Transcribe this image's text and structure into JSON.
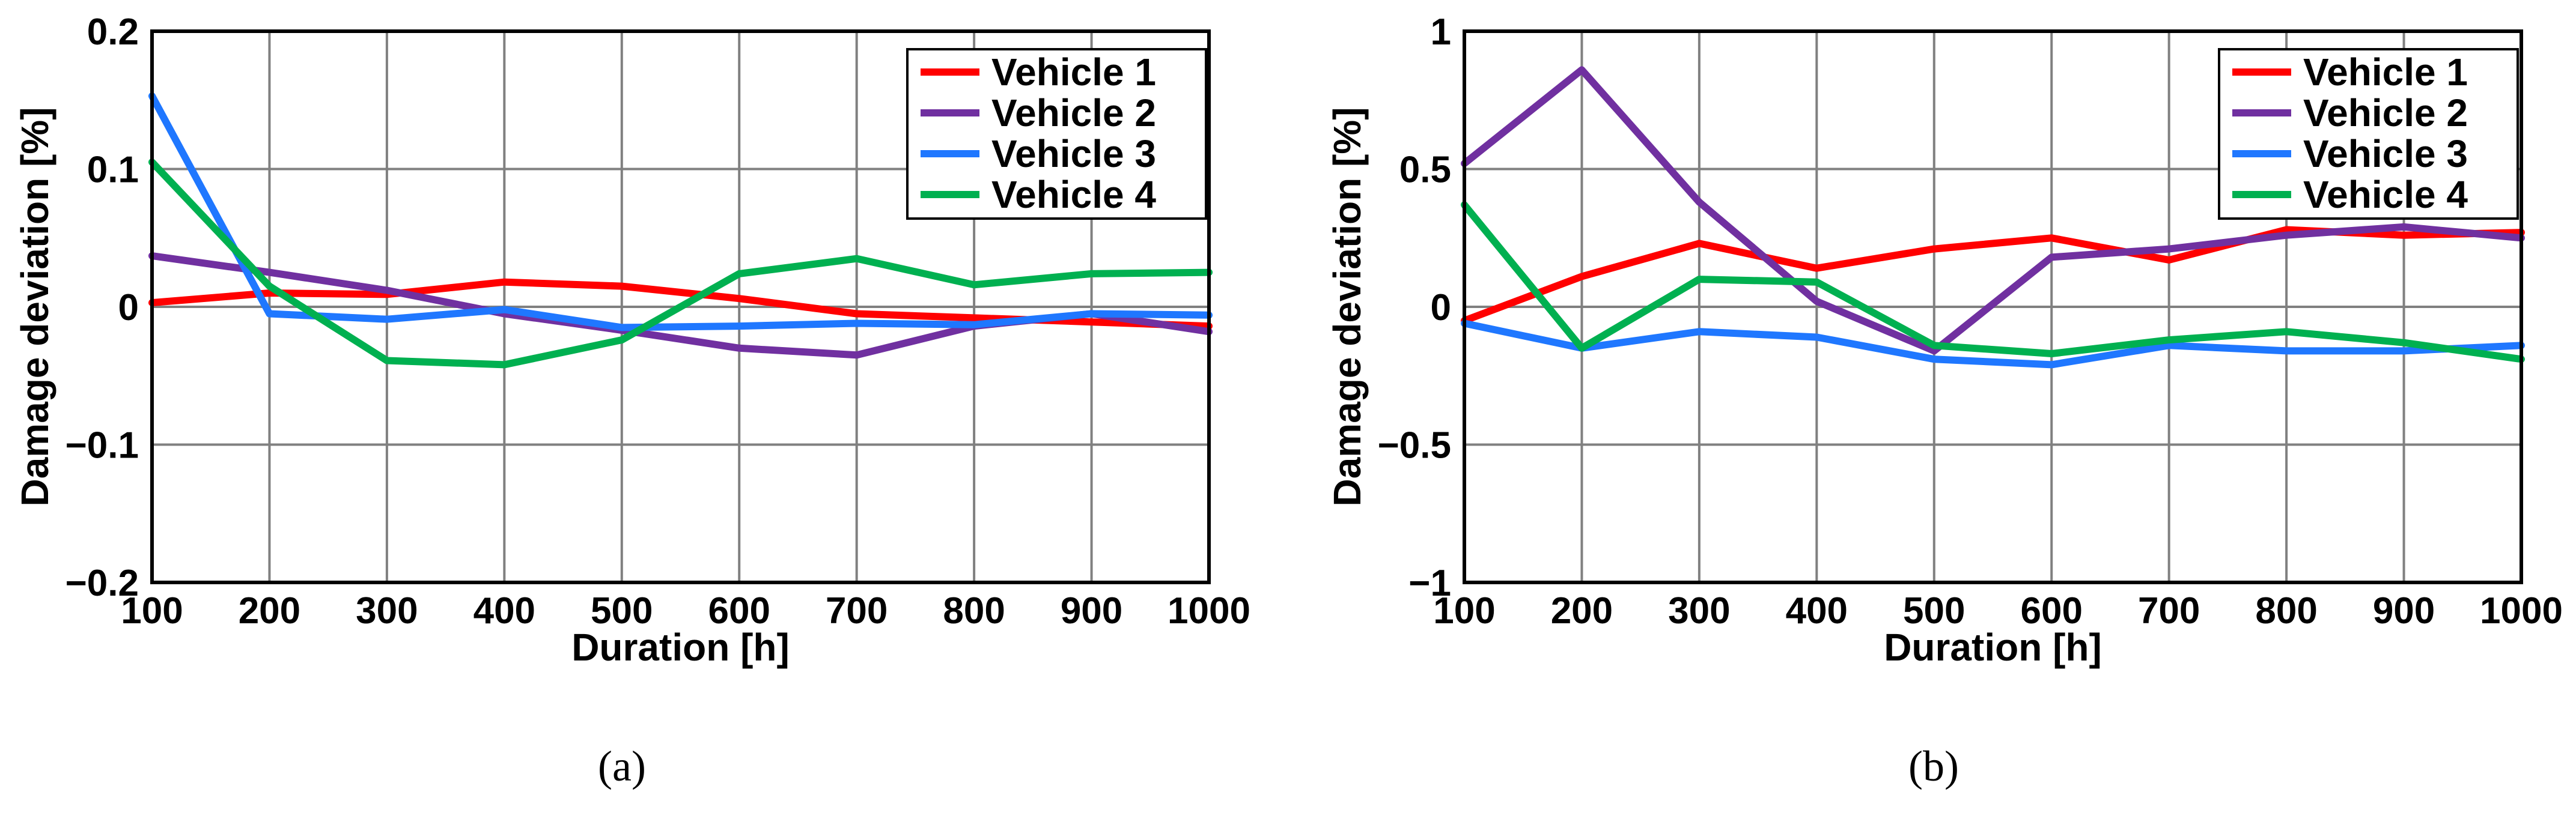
{
  "chart_data": [
    {
      "type": "line",
      "xlabel": "Duration [h]",
      "ylabel": "Damage deviation [%]",
      "xlim": [
        100,
        1000
      ],
      "ylim": [
        -0.2,
        0.2
      ],
      "x": [
        100,
        200,
        300,
        400,
        500,
        600,
        700,
        800,
        900,
        1000
      ],
      "xticks": [
        "100",
        "200",
        "300",
        "400",
        "500",
        "600",
        "700",
        "800",
        "900",
        "1000"
      ],
      "yticks": [
        {
          "value": 0.2,
          "label": "0.2"
        },
        {
          "value": 0.1,
          "label": "0.1"
        },
        {
          "value": 0,
          "label": "0"
        },
        {
          "value": -0.1,
          "label": "−0.1"
        },
        {
          "value": -0.2,
          "label": "−0.2"
        }
      ],
      "grid": true,
      "legend_position": "top-right",
      "caption": "(a)",
      "series": [
        {
          "name": "Vehicle 1",
          "color": "#ff0000",
          "values": [
            0.003,
            0.01,
            0.009,
            0.018,
            0.015,
            0.006,
            -0.005,
            -0.008,
            -0.011,
            -0.014
          ]
        },
        {
          "name": "Vehicle 2",
          "color": "#7030a0",
          "values": [
            0.037,
            0.025,
            0.012,
            -0.005,
            -0.017,
            -0.03,
            -0.035,
            -0.014,
            -0.005,
            -0.018
          ]
        },
        {
          "name": "Vehicle 3",
          "color": "#1f77ff",
          "values": [
            0.153,
            -0.005,
            -0.009,
            -0.002,
            -0.015,
            -0.014,
            -0.012,
            -0.013,
            -0.005,
            -0.006
          ]
        },
        {
          "name": "Vehicle 4",
          "color": "#00b050",
          "values": [
            0.105,
            0.015,
            -0.039,
            -0.042,
            -0.024,
            0.024,
            0.035,
            0.016,
            0.024,
            0.025
          ]
        }
      ]
    },
    {
      "type": "line",
      "xlabel": "Duration [h]",
      "ylabel": "Damage deviation [%]",
      "xlim": [
        100,
        1000
      ],
      "ylim": [
        -1,
        1
      ],
      "x": [
        100,
        200,
        300,
        400,
        500,
        600,
        700,
        800,
        900,
        1000
      ],
      "xticks": [
        "100",
        "200",
        "300",
        "400",
        "500",
        "600",
        "700",
        "800",
        "900",
        "1000"
      ],
      "yticks": [
        {
          "value": 1,
          "label": "1"
        },
        {
          "value": 0.5,
          "label": "0.5"
        },
        {
          "value": 0,
          "label": "0"
        },
        {
          "value": -0.5,
          "label": "−0.5"
        },
        {
          "value": -1,
          "label": "−1"
        }
      ],
      "grid": true,
      "legend_position": "top-right",
      "caption": "(b)",
      "series": [
        {
          "name": "Vehicle 1",
          "color": "#ff0000",
          "values": [
            -0.05,
            0.11,
            0.23,
            0.14,
            0.21,
            0.25,
            0.17,
            0.28,
            0.26,
            0.27
          ]
        },
        {
          "name": "Vehicle 2",
          "color": "#7030a0",
          "values": [
            0.52,
            0.86,
            0.38,
            0.02,
            -0.16,
            0.18,
            0.21,
            0.26,
            0.29,
            0.25
          ]
        },
        {
          "name": "Vehicle 3",
          "color": "#1f77ff",
          "values": [
            -0.06,
            -0.15,
            -0.09,
            -0.11,
            -0.19,
            -0.21,
            -0.14,
            -0.16,
            -0.16,
            -0.14
          ]
        },
        {
          "name": "Vehicle 4",
          "color": "#00b050",
          "values": [
            0.37,
            -0.15,
            0.1,
            0.09,
            -0.14,
            -0.17,
            -0.12,
            -0.09,
            -0.13,
            -0.19
          ]
        }
      ]
    }
  ]
}
